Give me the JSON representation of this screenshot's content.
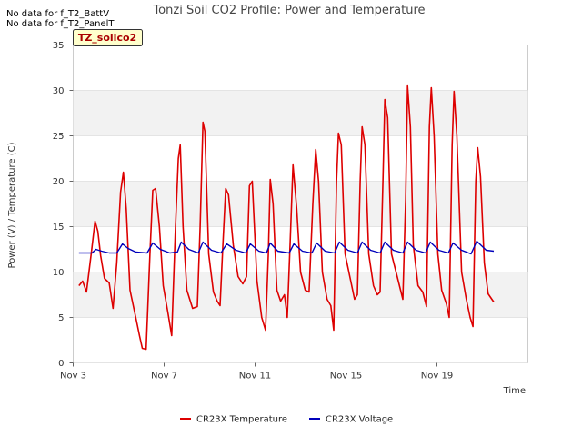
{
  "notes": [
    "No data for f_T2_BattV",
    "No data for f_T2_PanelT"
  ],
  "badge": "TZ_soilco2",
  "chart_data": {
    "type": "line",
    "title": "Tonzi Soil CO2 Profile: Power and Temperature",
    "xlabel": "Time",
    "ylabel": "Power (V) / Temperature (C)",
    "xlim": [
      "2023-11-03",
      "2023-11-21"
    ],
    "ylim": [
      0,
      35
    ],
    "yticks": [
      0,
      5,
      10,
      15,
      20,
      25,
      30,
      35
    ],
    "xticks": [
      {
        "date": "2023-11-03",
        "label": "Nov 3"
      },
      {
        "date": "2023-11-07",
        "label": "Nov 7"
      },
      {
        "date": "2023-11-11",
        "label": "Nov 11"
      },
      {
        "date": "2023-11-15",
        "label": "Nov 15"
      },
      {
        "date": "2023-11-19",
        "label": "Nov 19"
      }
    ],
    "grid": true,
    "legend_position": "bottom",
    "series": [
      {
        "name": "CR23X Temperature",
        "color": "#dd0000",
        "points": [
          [
            "2023-11-03 06:00",
            8.5
          ],
          [
            "2023-11-03 10:00",
            9.0
          ],
          [
            "2023-11-03 14:00",
            7.8
          ],
          [
            "2023-11-03 19:00",
            12.0
          ],
          [
            "2023-11-03 23:00",
            15.6
          ],
          [
            "2023-11-04 02:00",
            14.5
          ],
          [
            "2023-11-04 05:00",
            11.8
          ],
          [
            "2023-11-04 09:00",
            9.3
          ],
          [
            "2023-11-04 14:00",
            8.8
          ],
          [
            "2023-11-04 18:00",
            6.0
          ],
          [
            "2023-11-04 22:00",
            11.0
          ],
          [
            "2023-11-05 02:00",
            18.8
          ],
          [
            "2023-11-05 05:00",
            21.0
          ],
          [
            "2023-11-05 08:00",
            17.0
          ],
          [
            "2023-11-05 12:00",
            8.0
          ],
          [
            "2023-11-05 18:00",
            5.0
          ],
          [
            "2023-11-05 22:00",
            3.0
          ],
          [
            "2023-11-06 01:00",
            1.6
          ],
          [
            "2023-11-06 05:00",
            1.5
          ],
          [
            "2023-11-06 09:00",
            12.0
          ],
          [
            "2023-11-06 12:00",
            19.0
          ],
          [
            "2023-11-06 15:00",
            19.2
          ],
          [
            "2023-11-06 19:00",
            15.0
          ],
          [
            "2023-11-06 23:00",
            8.5
          ],
          [
            "2023-11-07 04:00",
            5.5
          ],
          [
            "2023-11-07 08:00",
            3.0
          ],
          [
            "2023-11-07 12:00",
            15.0
          ],
          [
            "2023-11-07 15:00",
            22.5
          ],
          [
            "2023-11-07 17:00",
            24.0
          ],
          [
            "2023-11-07 20:00",
            15.0
          ],
          [
            "2023-11-08 00:00",
            8.0
          ],
          [
            "2023-11-08 06:00",
            6.0
          ],
          [
            "2023-11-08 11:00",
            6.2
          ],
          [
            "2023-11-08 14:00",
            15.0
          ],
          [
            "2023-11-08 17:00",
            26.5
          ],
          [
            "2023-11-08 19:00",
            25.5
          ],
          [
            "2023-11-08 23:00",
            12.0
          ],
          [
            "2023-11-09 04:00",
            7.8
          ],
          [
            "2023-11-09 08:00",
            6.8
          ],
          [
            "2023-11-09 11:00",
            6.3
          ],
          [
            "2023-11-09 14:00",
            13.0
          ],
          [
            "2023-11-09 17:00",
            19.2
          ],
          [
            "2023-11-09 20:00",
            18.5
          ],
          [
            "2023-11-10 01:00",
            13.0
          ],
          [
            "2023-11-10 06:00",
            9.5
          ],
          [
            "2023-11-10 11:00",
            8.7
          ],
          [
            "2023-11-10 15:00",
            9.5
          ],
          [
            "2023-11-10 18:00",
            19.5
          ],
          [
            "2023-11-10 21:00",
            20.0
          ],
          [
            "2023-11-11 02:00",
            9.0
          ],
          [
            "2023-11-11 07:00",
            5.0
          ],
          [
            "2023-11-11 11:00",
            3.6
          ],
          [
            "2023-11-11 14:00",
            12.0
          ],
          [
            "2023-11-11 16:00",
            20.2
          ],
          [
            "2023-11-11 19:00",
            17.5
          ],
          [
            "2023-11-11 23:00",
            8.0
          ],
          [
            "2023-11-12 03:00",
            6.8
          ],
          [
            "2023-11-12 07:00",
            7.5
          ],
          [
            "2023-11-12 10:00",
            5.0
          ],
          [
            "2023-11-12 13:00",
            13.0
          ],
          [
            "2023-11-12 16:00",
            21.8
          ],
          [
            "2023-11-12 20:00",
            17.0
          ],
          [
            "2023-11-13 00:00",
            10.0
          ],
          [
            "2023-11-13 05:00",
            8.0
          ],
          [
            "2023-11-13 09:00",
            7.8
          ],
          [
            "2023-11-13 13:00",
            17.5
          ],
          [
            "2023-11-13 16:00",
            23.5
          ],
          [
            "2023-11-13 19:00",
            20.0
          ],
          [
            "2023-11-13 23:00",
            10.0
          ],
          [
            "2023-11-14 04:00",
            7.0
          ],
          [
            "2023-11-14 08:00",
            6.3
          ],
          [
            "2023-11-14 11:00",
            3.6
          ],
          [
            "2023-11-14 14:00",
            20.0
          ],
          [
            "2023-11-14 16:00",
            25.3
          ],
          [
            "2023-11-14 19:00",
            24.0
          ],
          [
            "2023-11-14 23:00",
            12.0
          ],
          [
            "2023-11-15 04:00",
            9.5
          ],
          [
            "2023-11-15 09:00",
            7.0
          ],
          [
            "2023-11-15 12:00",
            7.5
          ],
          [
            "2023-11-15 15:00",
            20.0
          ],
          [
            "2023-11-15 17:00",
            26.0
          ],
          [
            "2023-11-15 20:00",
            24.0
          ],
          [
            "2023-11-16 00:00",
            12.0
          ],
          [
            "2023-11-16 05:00",
            8.5
          ],
          [
            "2023-11-16 09:00",
            7.5
          ],
          [
            "2023-11-16 12:00",
            7.8
          ],
          [
            "2023-11-16 15:00",
            20.0
          ],
          [
            "2023-11-16 17:00",
            29.0
          ],
          [
            "2023-11-16 20:00",
            27.0
          ],
          [
            "2023-11-17 00:00",
            12.0
          ],
          [
            "2023-11-17 06:00",
            9.5
          ],
          [
            "2023-11-17 12:00",
            7.0
          ],
          [
            "2023-11-17 15:00",
            18.0
          ],
          [
            "2023-11-17 17:00",
            30.5
          ],
          [
            "2023-11-17 20:00",
            26.0
          ],
          [
            "2023-11-17 23:00",
            13.0
          ],
          [
            "2023-11-18 04:00",
            8.5
          ],
          [
            "2023-11-18 09:00",
            7.8
          ],
          [
            "2023-11-18 13:00",
            6.2
          ],
          [
            "2023-11-18 16:00",
            26.0
          ],
          [
            "2023-11-18 18:00",
            30.3
          ],
          [
            "2023-11-18 21:00",
            25.0
          ],
          [
            "2023-11-19 01:00",
            12.0
          ],
          [
            "2023-11-19 05:00",
            8.0
          ],
          [
            "2023-11-19 10:00",
            6.5
          ],
          [
            "2023-11-19 13:00",
            5.0
          ],
          [
            "2023-11-19 16:00",
            24.0
          ],
          [
            "2023-11-19 18:00",
            29.9
          ],
          [
            "2023-11-19 21:00",
            25.0
          ],
          [
            "2023-11-20 02:00",
            10.0
          ],
          [
            "2023-11-20 07:00",
            7.0
          ],
          [
            "2023-11-20 11:00",
            5.0
          ],
          [
            "2023-11-20 14:00",
            4.0
          ],
          [
            "2023-11-20 17:00",
            20.0
          ],
          [
            "2023-11-20 19:00",
            23.7
          ],
          [
            "2023-11-20 22:00",
            20.5
          ],
          [
            "2023-11-21 02:00",
            11.0
          ],
          [
            "2023-11-21 06:00",
            7.6
          ],
          [
            "2023-11-21 10:00",
            7.0
          ],
          [
            "2023-11-21 12:00",
            6.7
          ]
        ]
      },
      {
        "name": "CR23X Voltage",
        "color": "#0000bb",
        "points": [
          [
            "2023-11-03 06:00",
            12.1
          ],
          [
            "2023-11-03 12:00",
            12.1
          ],
          [
            "2023-11-03 20:00",
            12.1
          ],
          [
            "2023-11-04 00:00",
            12.5
          ],
          [
            "2023-11-04 06:00",
            12.3
          ],
          [
            "2023-11-04 14:00",
            12.1
          ],
          [
            "2023-11-04 22:00",
            12.1
          ],
          [
            "2023-11-05 04:00",
            13.1
          ],
          [
            "2023-11-05 10:00",
            12.6
          ],
          [
            "2023-11-05 18:00",
            12.2
          ],
          [
            "2023-11-06 06:00",
            12.1
          ],
          [
            "2023-11-06 12:00",
            13.2
          ],
          [
            "2023-11-06 20:00",
            12.5
          ],
          [
            "2023-11-07 06:00",
            12.1
          ],
          [
            "2023-11-07 14:00",
            12.2
          ],
          [
            "2023-11-07 18:00",
            13.3
          ],
          [
            "2023-11-08 02:00",
            12.5
          ],
          [
            "2023-11-08 12:00",
            12.1
          ],
          [
            "2023-11-08 17:00",
            13.3
          ],
          [
            "2023-11-09 02:00",
            12.4
          ],
          [
            "2023-11-09 12:00",
            12.1
          ],
          [
            "2023-11-09 18:00",
            13.1
          ],
          [
            "2023-11-10 04:00",
            12.4
          ],
          [
            "2023-11-10 14:00",
            12.1
          ],
          [
            "2023-11-10 19:00",
            13.1
          ],
          [
            "2023-11-11 04:00",
            12.3
          ],
          [
            "2023-11-11 12:00",
            12.1
          ],
          [
            "2023-11-11 16:00",
            13.2
          ],
          [
            "2023-11-12 00:00",
            12.3
          ],
          [
            "2023-11-12 12:00",
            12.1
          ],
          [
            "2023-11-12 17:00",
            13.1
          ],
          [
            "2023-11-13 02:00",
            12.3
          ],
          [
            "2023-11-13 12:00",
            12.1
          ],
          [
            "2023-11-13 17:00",
            13.2
          ],
          [
            "2023-11-14 02:00",
            12.3
          ],
          [
            "2023-11-14 12:00",
            12.1
          ],
          [
            "2023-11-14 17:00",
            13.3
          ],
          [
            "2023-11-15 02:00",
            12.4
          ],
          [
            "2023-11-15 12:00",
            12.1
          ],
          [
            "2023-11-15 17:00",
            13.3
          ],
          [
            "2023-11-16 02:00",
            12.4
          ],
          [
            "2023-11-16 12:00",
            12.1
          ],
          [
            "2023-11-16 17:00",
            13.3
          ],
          [
            "2023-11-17 02:00",
            12.4
          ],
          [
            "2023-11-17 12:00",
            12.1
          ],
          [
            "2023-11-17 17:00",
            13.3
          ],
          [
            "2023-11-18 02:00",
            12.4
          ],
          [
            "2023-11-18 12:00",
            12.1
          ],
          [
            "2023-11-18 17:00",
            13.3
          ],
          [
            "2023-11-19 02:00",
            12.4
          ],
          [
            "2023-11-19 12:00",
            12.1
          ],
          [
            "2023-11-19 17:00",
            13.2
          ],
          [
            "2023-11-20 02:00",
            12.4
          ],
          [
            "2023-11-20 12:00",
            12.0
          ],
          [
            "2023-11-20 18:00",
            13.4
          ],
          [
            "2023-11-21 04:00",
            12.4
          ],
          [
            "2023-11-21 12:00",
            12.3
          ]
        ]
      }
    ]
  }
}
